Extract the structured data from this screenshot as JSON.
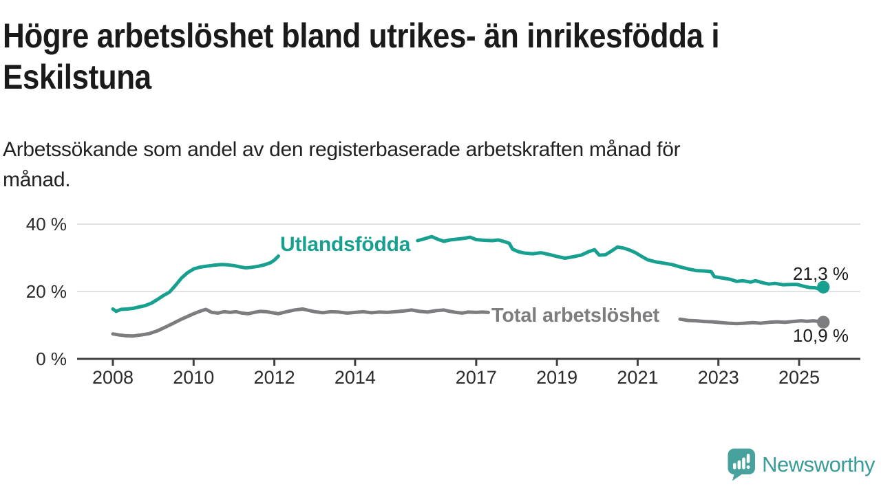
{
  "header": {
    "title": "Högre arbetslöshet bland utrikes- än inrikesfödda i Eskilstuna",
    "title_lines": [
      "Högre arbetslöshet bland utrikes- än inrikesfödda i",
      "Eskilstuna"
    ],
    "subtitle": "Arbetssökande som andel av den registerbaserade arbetskraften månad för månad.",
    "subtitle_lines": [
      "Arbetssökande som andel av den registerbaserade arbetskraften månad för",
      "månad."
    ]
  },
  "chart_data": {
    "type": "line",
    "title": "Högre arbetslöshet bland utrikes- än inrikesfödda i Eskilstuna",
    "subtitle": "Arbetssökande som andel av den registerbaserade arbetskraften månad för månad.",
    "xlabel": "",
    "ylabel": "",
    "x_unit": "year (monthly data)",
    "y_unit": "%",
    "xlim": [
      2007.1,
      2026.5
    ],
    "ylim": [
      0,
      42
    ],
    "grid": "horizontal",
    "x_ticks": [
      2008,
      2010,
      2012,
      2014,
      2017,
      2019,
      2021,
      2023,
      2025
    ],
    "y_ticks": [
      {
        "value": 0,
        "label": "0 %"
      },
      {
        "value": 20,
        "label": "20 %"
      },
      {
        "value": 40,
        "label": "40 %"
      }
    ],
    "colors": {
      "utlandsfodda": "#17a08f",
      "total": "#7d7d80",
      "gridline": "#d9d9d9",
      "axis": "#404040",
      "tick_text": "#2b2b2b"
    },
    "series": [
      {
        "id": "utlandsfodda",
        "name": "Utlandsfödda",
        "color": "#17a08f",
        "end_label": "21,3 %",
        "end_value": 21.3,
        "segments": [
          [
            [
              2008.0,
              14.8
            ],
            [
              2008.08,
              14.1
            ],
            [
              2008.2,
              14.7
            ],
            [
              2008.35,
              14.8
            ],
            [
              2008.5,
              15.0
            ],
            [
              2008.65,
              15.4
            ],
            [
              2008.8,
              15.8
            ],
            [
              2008.95,
              16.5
            ],
            [
              2009.1,
              17.6
            ],
            [
              2009.25,
              18.8
            ],
            [
              2009.4,
              19.8
            ],
            [
              2009.55,
              21.8
            ],
            [
              2009.7,
              24.0
            ],
            [
              2009.85,
              25.6
            ],
            [
              2010.0,
              26.7
            ],
            [
              2010.15,
              27.2
            ],
            [
              2010.3,
              27.5
            ],
            [
              2010.5,
              27.8
            ],
            [
              2010.7,
              28.0
            ],
            [
              2010.85,
              27.9
            ],
            [
              2011.0,
              27.7
            ],
            [
              2011.15,
              27.3
            ],
            [
              2011.3,
              27.0
            ],
            [
              2011.45,
              27.2
            ],
            [
              2011.6,
              27.5
            ],
            [
              2011.75,
              27.9
            ],
            [
              2011.9,
              28.5
            ],
            [
              2012.0,
              29.3
            ],
            [
              2012.1,
              30.5
            ]
          ],
          [
            [
              2015.55,
              35.1
            ],
            [
              2015.7,
              35.6
            ],
            [
              2015.9,
              36.3
            ],
            [
              2016.05,
              35.5
            ],
            [
              2016.2,
              34.9
            ],
            [
              2016.35,
              35.3
            ],
            [
              2016.5,
              35.5
            ],
            [
              2016.7,
              35.8
            ],
            [
              2016.85,
              36.1
            ],
            [
              2017.0,
              35.4
            ],
            [
              2017.2,
              35.2
            ],
            [
              2017.4,
              35.1
            ],
            [
              2017.55,
              35.3
            ],
            [
              2017.7,
              34.8
            ],
            [
              2017.82,
              34.3
            ],
            [
              2017.9,
              32.6
            ],
            [
              2018.05,
              31.8
            ],
            [
              2018.2,
              31.4
            ],
            [
              2018.4,
              31.2
            ],
            [
              2018.6,
              31.5
            ],
            [
              2018.8,
              31.0
            ],
            [
              2019.0,
              30.4
            ],
            [
              2019.2,
              29.9
            ],
            [
              2019.4,
              30.3
            ],
            [
              2019.6,
              30.8
            ],
            [
              2019.8,
              31.9
            ],
            [
              2019.93,
              32.4
            ],
            [
              2020.05,
              30.8
            ],
            [
              2020.2,
              30.9
            ],
            [
              2020.35,
              32.0
            ],
            [
              2020.5,
              33.2
            ],
            [
              2020.65,
              32.9
            ],
            [
              2020.8,
              32.3
            ],
            [
              2020.95,
              31.5
            ],
            [
              2021.1,
              30.4
            ],
            [
              2021.25,
              29.4
            ],
            [
              2021.45,
              28.8
            ],
            [
              2021.65,
              28.4
            ],
            [
              2021.85,
              28.0
            ],
            [
              2022.05,
              27.3
            ],
            [
              2022.25,
              26.7
            ],
            [
              2022.45,
              26.2
            ],
            [
              2022.65,
              26.1
            ],
            [
              2022.82,
              25.9
            ],
            [
              2022.9,
              24.4
            ],
            [
              2023.1,
              24.0
            ],
            [
              2023.3,
              23.6
            ],
            [
              2023.45,
              23.0
            ],
            [
              2023.6,
              23.2
            ],
            [
              2023.8,
              22.8
            ],
            [
              2023.92,
              23.2
            ],
            [
              2024.1,
              22.6
            ],
            [
              2024.25,
              22.2
            ],
            [
              2024.4,
              22.4
            ],
            [
              2024.6,
              22.0
            ],
            [
              2024.8,
              22.1
            ],
            [
              2024.95,
              22.1
            ],
            [
              2025.1,
              21.6
            ],
            [
              2025.25,
              21.2
            ],
            [
              2025.4,
              21.1
            ],
            [
              2025.5,
              20.7
            ],
            [
              2025.6,
              21.3
            ]
          ]
        ]
      },
      {
        "id": "total",
        "name": "Total arbetslöshet",
        "color": "#7d7d80",
        "end_label": "10,9 %",
        "end_value": 10.9,
        "segments": [
          [
            [
              2008.0,
              7.4
            ],
            [
              2008.15,
              7.1
            ],
            [
              2008.3,
              6.9
            ],
            [
              2008.5,
              6.8
            ],
            [
              2008.7,
              7.1
            ],
            [
              2008.9,
              7.5
            ],
            [
              2009.1,
              8.3
            ],
            [
              2009.3,
              9.4
            ],
            [
              2009.5,
              10.6
            ],
            [
              2009.7,
              11.8
            ],
            [
              2009.85,
              12.6
            ],
            [
              2010.0,
              13.4
            ],
            [
              2010.15,
              14.1
            ],
            [
              2010.3,
              14.7
            ],
            [
              2010.45,
              13.8
            ],
            [
              2010.6,
              13.6
            ],
            [
              2010.75,
              14.0
            ],
            [
              2010.9,
              13.8
            ],
            [
              2011.05,
              14.0
            ],
            [
              2011.2,
              13.6
            ],
            [
              2011.35,
              13.4
            ],
            [
              2011.5,
              13.8
            ],
            [
              2011.65,
              14.1
            ],
            [
              2011.8,
              14.0
            ],
            [
              2011.95,
              13.7
            ],
            [
              2012.1,
              13.4
            ],
            [
              2012.3,
              14.0
            ],
            [
              2012.5,
              14.5
            ],
            [
              2012.7,
              14.8
            ],
            [
              2012.85,
              14.4
            ],
            [
              2013.0,
              14.0
            ],
            [
              2013.2,
              13.7
            ],
            [
              2013.4,
              14.0
            ],
            [
              2013.6,
              13.9
            ],
            [
              2013.8,
              13.6
            ],
            [
              2014.0,
              13.8
            ],
            [
              2014.2,
              14.0
            ],
            [
              2014.4,
              13.7
            ],
            [
              2014.6,
              13.9
            ],
            [
              2014.8,
              13.8
            ],
            [
              2015.0,
              14.0
            ],
            [
              2015.2,
              14.2
            ],
            [
              2015.4,
              14.5
            ],
            [
              2015.6,
              14.1
            ],
            [
              2015.8,
              13.9
            ],
            [
              2016.0,
              14.3
            ],
            [
              2016.2,
              14.5
            ],
            [
              2016.35,
              14.1
            ],
            [
              2016.5,
              13.8
            ],
            [
              2016.65,
              13.6
            ],
            [
              2016.8,
              13.9
            ],
            [
              2017.0,
              13.8
            ],
            [
              2017.15,
              13.9
            ],
            [
              2017.3,
              13.8
            ]
          ],
          [
            [
              2022.05,
              11.8
            ],
            [
              2022.25,
              11.4
            ],
            [
              2022.45,
              11.3
            ],
            [
              2022.65,
              11.1
            ],
            [
              2022.85,
              11.0
            ],
            [
              2023.05,
              10.8
            ],
            [
              2023.25,
              10.6
            ],
            [
              2023.45,
              10.45
            ],
            [
              2023.65,
              10.6
            ],
            [
              2023.85,
              10.75
            ],
            [
              2024.05,
              10.6
            ],
            [
              2024.25,
              10.85
            ],
            [
              2024.45,
              11.0
            ],
            [
              2024.65,
              10.85
            ],
            [
              2024.85,
              11.1
            ],
            [
              2025.05,
              11.3
            ],
            [
              2025.2,
              11.15
            ],
            [
              2025.35,
              11.3
            ],
            [
              2025.5,
              11.1
            ],
            [
              2025.6,
              10.9
            ]
          ]
        ]
      }
    ],
    "legend_position": "inline-on-line"
  },
  "footer": {
    "brand": "Newsworthy",
    "brand_color": "#3a9c98"
  }
}
